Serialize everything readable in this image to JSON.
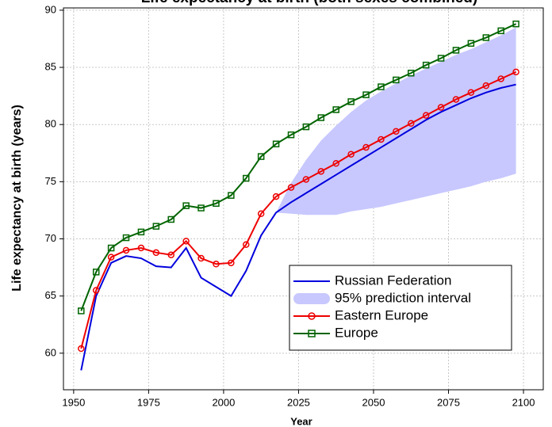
{
  "chart_data": {
    "type": "line",
    "title": "Life expectancy at birth (both sexes combined)",
    "x_label": "Year",
    "y_label": "Life expectancy at birth (years)",
    "x": [
      1952.5,
      1957.5,
      1962.5,
      1967.5,
      1972.5,
      1977.5,
      1982.5,
      1987.5,
      1992.5,
      1997.5,
      2002.5,
      2007.5,
      2012.5,
      2017.5,
      2022.5,
      2027.5,
      2032.5,
      2037.5,
      2042.5,
      2047.5,
      2052.5,
      2057.5,
      2062.5,
      2067.5,
      2072.5,
      2077.5,
      2082.5,
      2087.5,
      2092.5,
      2097.5
    ],
    "interval": {
      "name": "95% prediction interval",
      "color": "#c8c8ff",
      "lower": [
        null,
        null,
        null,
        null,
        null,
        null,
        null,
        null,
        null,
        null,
        null,
        null,
        null,
        72.3,
        72.2,
        72.1,
        72.1,
        72.1,
        72.4,
        72.6,
        72.8,
        73.1,
        73.4,
        73.7,
        74.0,
        74.3,
        74.6,
        75.0,
        75.3,
        75.7
      ],
      "upper": [
        null,
        null,
        null,
        null,
        null,
        null,
        null,
        null,
        null,
        null,
        null,
        null,
        null,
        72.3,
        74.9,
        76.9,
        78.6,
        79.9,
        81.1,
        82.1,
        82.9,
        83.6,
        84.3,
        84.9,
        85.5,
        86.1,
        86.6,
        87.2,
        87.8,
        88.5
      ]
    },
    "series": [
      {
        "name": "Russian Federation",
        "color": "#0000dd",
        "marker": "none",
        "values": [
          58.5,
          65.0,
          67.9,
          68.5,
          68.3,
          67.6,
          67.5,
          69.2,
          66.6,
          65.8,
          65.0,
          67.2,
          70.3,
          72.3,
          73.2,
          74.0,
          74.8,
          75.6,
          76.4,
          77.2,
          78.0,
          78.8,
          79.6,
          80.4,
          81.1,
          81.7,
          82.3,
          82.8,
          83.2,
          83.5
        ]
      },
      {
        "name": "Eastern Europe",
        "color": "#ee0000",
        "marker": "circle",
        "values": [
          60.4,
          65.5,
          68.4,
          69.0,
          69.2,
          68.8,
          68.6,
          69.8,
          68.3,
          67.8,
          67.9,
          69.5,
          72.2,
          73.7,
          74.5,
          75.2,
          75.9,
          76.6,
          77.4,
          78.0,
          78.7,
          79.4,
          80.1,
          80.8,
          81.5,
          82.2,
          82.8,
          83.4,
          84.0,
          84.6
        ]
      },
      {
        "name": "Europe",
        "color": "#006400",
        "marker": "square",
        "values": [
          63.7,
          67.1,
          69.2,
          70.1,
          70.6,
          71.1,
          71.7,
          72.9,
          72.7,
          73.1,
          73.8,
          75.3,
          77.2,
          78.3,
          79.1,
          79.8,
          80.6,
          81.3,
          82.0,
          82.6,
          83.3,
          83.9,
          84.5,
          85.2,
          85.8,
          86.5,
          87.1,
          87.6,
          88.2,
          88.8
        ]
      }
    ],
    "xlim": [
      1946.6,
      2106.6
    ],
    "ylim": [
      56.8,
      90.2
    ],
    "xticks": [
      1950,
      1975,
      2000,
      2025,
      2050,
      2075,
      2100
    ],
    "yticks": [
      60,
      65,
      70,
      75,
      80,
      85,
      90
    ],
    "grid": true
  }
}
